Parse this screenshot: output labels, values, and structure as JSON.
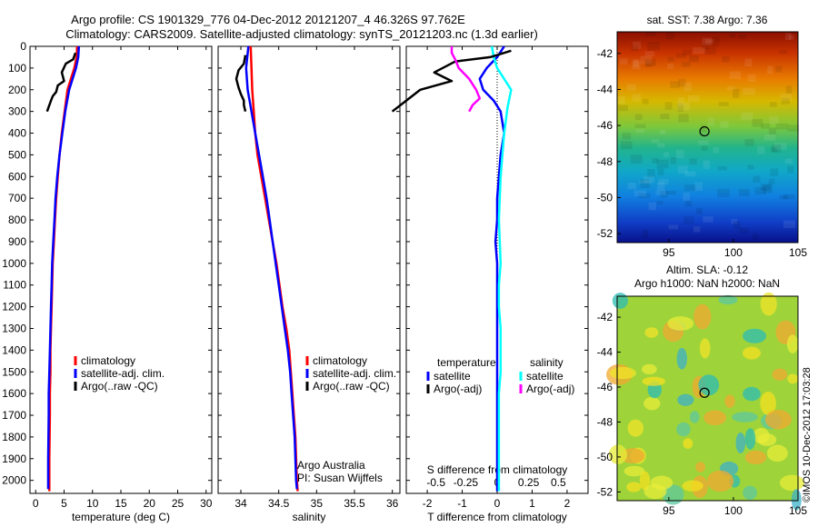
{
  "title_line1": "Argo profile: CS 1901329_776 04-Dec-2012 20121207_4 46.326S 97.762E",
  "title_line2": "Climatology: CARS2009. Satellite-adjusted climatology: synTS_20121203.nc (1.3d earlier)",
  "depth_ticks": [
    0,
    100,
    200,
    300,
    400,
    500,
    600,
    700,
    800,
    900,
    1000,
    1100,
    1200,
    1300,
    1400,
    1500,
    1600,
    1700,
    1800,
    1900,
    2000
  ],
  "colors": {
    "climatology": "#ff0000",
    "satellite": "#0000ff",
    "argo": "#000000",
    "sal_sat": "#00ffff",
    "sal_argo": "#ff00ff"
  },
  "chart_data": [
    {
      "type": "line",
      "id": "temperature",
      "xlabel": "temperature (deg C)",
      "ylabel": "",
      "xlim": [
        -1,
        31
      ],
      "ylim": [
        2060,
        0
      ],
      "xticks": [
        0,
        5,
        10,
        15,
        20,
        25,
        30
      ],
      "legend": {
        "placement": "lower-center",
        "entries": [
          "climatology",
          "satellite-adj. clim.",
          "Argo(..raw -QC)"
        ]
      },
      "series": [
        {
          "name": "climatology",
          "color": "#ff0000",
          "x": [
            7.3,
            7.2,
            6.8,
            6.2,
            5.6,
            5.1,
            4.6,
            4.2,
            3.9,
            3.6,
            3.4,
            3.2,
            3.0,
            2.9,
            2.8,
            2.7,
            2.6,
            2.6,
            2.5,
            2.5,
            2.4,
            2.4
          ],
          "y": [
            0,
            50,
            100,
            150,
            200,
            300,
            400,
            500,
            600,
            700,
            800,
            900,
            1000,
            1100,
            1200,
            1300,
            1400,
            1500,
            1600,
            1700,
            1900,
            2050
          ]
        },
        {
          "name": "satellite-adj. clim.",
          "color": "#0000ff",
          "x": [
            7.6,
            7.5,
            7.1,
            6.5,
            5.9,
            5.2,
            4.7,
            4.2,
            3.8,
            3.5,
            3.3,
            3.1,
            2.9,
            2.8,
            2.7,
            2.6,
            2.5,
            2.4,
            2.3,
            2.3,
            2.2,
            2.2
          ],
          "y": [
            0,
            50,
            100,
            150,
            200,
            300,
            400,
            500,
            600,
            700,
            800,
            900,
            1000,
            1100,
            1200,
            1300,
            1400,
            1500,
            1600,
            1700,
            1900,
            2040
          ]
        },
        {
          "name": "Argo(..raw -QC)",
          "color": "#000000",
          "x": [
            7.0,
            6.6,
            5.3,
            4.6,
            5.0,
            3.9,
            3.6,
            3.0,
            2.7,
            2.0
          ],
          "y": [
            30,
            60,
            80,
            120,
            160,
            180,
            210,
            230,
            250,
            300
          ]
        }
      ]
    },
    {
      "type": "line",
      "id": "salinity",
      "xlabel": "salinity",
      "ylabel": "",
      "xlim": [
        33.7,
        36.1
      ],
      "ylim": [
        2060,
        0
      ],
      "xticks": [
        34,
        34.5,
        35,
        35.5,
        36
      ],
      "legend": {
        "placement": "lower-center",
        "entries": [
          "climatology",
          "satellite-adj. clim.",
          "Argo(..raw -QC)"
        ]
      },
      "annotations": [
        "Argo Australia",
        "PI: Susan Wijffels"
      ],
      "series": [
        {
          "name": "climatology",
          "color": "#ff0000",
          "x": [
            34.13,
            34.14,
            34.15,
            34.17,
            34.19,
            34.22,
            34.27,
            34.32,
            34.37,
            34.42,
            34.47,
            34.51,
            34.55,
            34.6,
            34.64,
            34.66,
            34.68,
            34.7,
            34.72,
            34.73,
            34.74,
            34.75
          ],
          "y": [
            0,
            100,
            200,
            300,
            400,
            500,
            600,
            700,
            800,
            900,
            1000,
            1100,
            1200,
            1300,
            1400,
            1500,
            1600,
            1700,
            1800,
            1900,
            2000,
            2050
          ]
        },
        {
          "name": "satellite-adj. clim.",
          "color": "#0000ff",
          "x": [
            34.1,
            34.07,
            34.09,
            34.14,
            34.19,
            34.24,
            34.29,
            34.34,
            34.38,
            34.42,
            34.46,
            34.5,
            34.54,
            34.58,
            34.62,
            34.65,
            34.67,
            34.69,
            34.71,
            34.72,
            34.73,
            34.74
          ],
          "y": [
            0,
            100,
            200,
            300,
            400,
            500,
            600,
            700,
            800,
            900,
            1000,
            1100,
            1200,
            1300,
            1400,
            1500,
            1600,
            1700,
            1800,
            1900,
            2000,
            2040
          ]
        },
        {
          "name": "Argo(..raw -QC)",
          "color": "#000000",
          "x": [
            34.06,
            34.04,
            33.97,
            33.94,
            33.97,
            34.0,
            34.04,
            34.04,
            34.06
          ],
          "y": [
            40,
            80,
            110,
            150,
            190,
            220,
            250,
            270,
            300
          ]
        }
      ]
    },
    {
      "type": "line",
      "id": "difference",
      "xlabel": "T difference from climatology",
      "x2label": "S difference from climatology",
      "ylabel": "",
      "xlim": [
        -2.6,
        2.6
      ],
      "ylim": [
        2060,
        0
      ],
      "xticks": [
        -2,
        -1,
        0,
        1,
        2
      ],
      "x2ticks": [
        "-0.5",
        "-0.25",
        "0",
        "0.25",
        "0.5"
      ],
      "legend": {
        "placement": "lower-center",
        "groups": [
          {
            "title": "temperature",
            "entries": [
              "satellite",
              "Argo(-adj)"
            ]
          },
          {
            "title": "salinity",
            "entries": [
              "satellite",
              "Argo(-adj)"
            ]
          }
        ]
      },
      "series": [
        {
          "name": "temperature satellite",
          "color": "#0000ff",
          "x": [
            0.2,
            0.0,
            -0.3,
            -0.5,
            -0.4,
            -0.1,
            0.1,
            0.2,
            0.1,
            0.05,
            0.0,
            0.0,
            -0.05,
            0.0,
            0.0,
            0.0,
            0.0,
            0.0,
            0.0,
            0.0,
            0.0
          ],
          "y": [
            0,
            50,
            100,
            150,
            200,
            250,
            300,
            400,
            500,
            600,
            700,
            800,
            900,
            1000,
            1200,
            1400,
            1500,
            1600,
            1800,
            2000,
            2050
          ]
        },
        {
          "name": "salinity satellite",
          "color": "#00ffff",
          "x": [
            -0.15,
            -0.1,
            0.0,
            0.2,
            0.4,
            0.3,
            0.2,
            0.1,
            0.05,
            0.1,
            0.05,
            0.05,
            0.1,
            0.1,
            0.1,
            0.05,
            0.05,
            0.05,
            0.05
          ],
          "y": [
            0,
            50,
            100,
            150,
            200,
            280,
            400,
            600,
            800,
            1000,
            1100,
            1200,
            1300,
            1400,
            1500,
            1600,
            1800,
            2000,
            2050
          ]
        },
        {
          "name": "temperature Argo(-adj)",
          "color": "#000000",
          "x": [
            0.4,
            -0.2,
            -1.2,
            -1.8,
            -1.3,
            -2.2,
            -2.6,
            -3.0
          ],
          "y": [
            20,
            50,
            70,
            120,
            160,
            200,
            250,
            300
          ]
        },
        {
          "name": "salinity Argo(-adj)",
          "color": "#ff00ff",
          "x": [
            -1.3,
            -1.3,
            -1.2,
            -1.1,
            -0.8,
            -0.6,
            -0.5,
            -0.7,
            -0.8
          ],
          "y": [
            0,
            30,
            60,
            100,
            150,
            200,
            240,
            270,
            300
          ]
        }
      ]
    }
  ],
  "sst_map": {
    "title": "sat. SST: 7.38 Argo: 7.36",
    "xticks": [
      "95",
      "100",
      "105"
    ],
    "yticks": [
      "-42",
      "-44",
      "-46",
      "-48",
      "-50",
      "-52"
    ],
    "lon_range": [
      91,
      105
    ],
    "lat_range": [
      -52.5,
      -40.8
    ],
    "argo_position": {
      "lon": 97.762,
      "lat": -46.326
    }
  },
  "sla_map": {
    "title_line1": "Altim. SLA: -0.12",
    "title_line2": "Argo h1000: NaN h2000: NaN",
    "xticks": [
      "95",
      "100",
      "105"
    ],
    "yticks": [
      "-42",
      "-44",
      "-46",
      "-48",
      "-50",
      "-52"
    ],
    "lon_range": [
      91,
      105
    ],
    "lat_range": [
      -52.5,
      -40.8
    ],
    "argo_position": {
      "lon": 97.762,
      "lat": -46.326
    }
  },
  "credit": "©IMOS 10-Dec-2012 17:03:28"
}
